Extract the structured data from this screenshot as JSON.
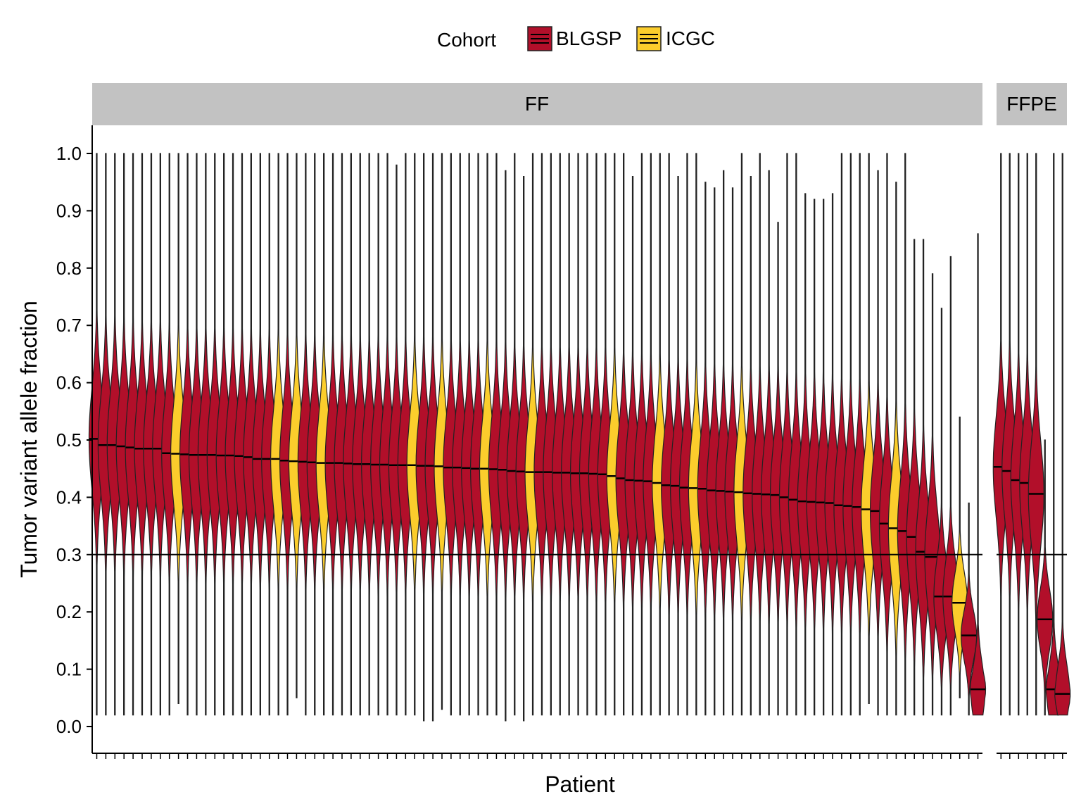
{
  "chart_data": {
    "type": "violin",
    "legend": {
      "title": "Cohort",
      "placement": "top",
      "entries": [
        {
          "name": "BLGSP",
          "color": "#B20F2A"
        },
        {
          "name": "ICGC",
          "color": "#FBCD2C"
        }
      ]
    },
    "xlabel": "Patient",
    "ylabel": "Tumor variant allele fraction",
    "ylim": [
      -0.05,
      1.05
    ],
    "yticks": [
      "0.0",
      "0.1",
      "0.2",
      "0.3",
      "0.4",
      "0.5",
      "0.6",
      "0.7",
      "0.8",
      "0.9",
      "1.0"
    ],
    "reference_line_y": 0.3,
    "facets": [
      {
        "label": "FF",
        "patients": [
          {
            "cohort": "BLGSP",
            "median": 0.502,
            "min": 0.02,
            "max": 1.0
          },
          {
            "cohort": "BLGSP",
            "median": 0.491,
            "min": 0.02,
            "max": 1.0
          },
          {
            "cohort": "BLGSP",
            "median": 0.491,
            "min": 0.02,
            "max": 1.0
          },
          {
            "cohort": "BLGSP",
            "median": 0.489,
            "min": 0.02,
            "max": 1.0
          },
          {
            "cohort": "BLGSP",
            "median": 0.487,
            "min": 0.02,
            "max": 1.0
          },
          {
            "cohort": "BLGSP",
            "median": 0.485,
            "min": 0.02,
            "max": 1.0
          },
          {
            "cohort": "BLGSP",
            "median": 0.485,
            "min": 0.02,
            "max": 1.0
          },
          {
            "cohort": "BLGSP",
            "median": 0.485,
            "min": 0.02,
            "max": 1.0
          },
          {
            "cohort": "BLGSP",
            "median": 0.477,
            "min": 0.02,
            "max": 1.0
          },
          {
            "cohort": "ICGC",
            "median": 0.476,
            "min": 0.04,
            "max": 1.0
          },
          {
            "cohort": "BLGSP",
            "median": 0.475,
            "min": 0.02,
            "max": 1.0
          },
          {
            "cohort": "BLGSP",
            "median": 0.474,
            "min": 0.02,
            "max": 1.0
          },
          {
            "cohort": "BLGSP",
            "median": 0.474,
            "min": 0.02,
            "max": 1.0
          },
          {
            "cohort": "BLGSP",
            "median": 0.474,
            "min": 0.02,
            "max": 1.0
          },
          {
            "cohort": "BLGSP",
            "median": 0.473,
            "min": 0.02,
            "max": 1.0
          },
          {
            "cohort": "BLGSP",
            "median": 0.473,
            "min": 0.02,
            "max": 1.0
          },
          {
            "cohort": "BLGSP",
            "median": 0.472,
            "min": 0.02,
            "max": 1.0
          },
          {
            "cohort": "BLGSP",
            "median": 0.47,
            "min": 0.02,
            "max": 1.0
          },
          {
            "cohort": "BLGSP",
            "median": 0.467,
            "min": 0.02,
            "max": 1.0
          },
          {
            "cohort": "BLGSP",
            "median": 0.467,
            "min": 0.02,
            "max": 1.0
          },
          {
            "cohort": "ICGC",
            "median": 0.467,
            "min": 0.02,
            "max": 1.0
          },
          {
            "cohort": "BLGSP",
            "median": 0.464,
            "min": 0.02,
            "max": 1.0
          },
          {
            "cohort": "ICGC",
            "median": 0.463,
            "min": 0.05,
            "max": 1.0
          },
          {
            "cohort": "BLGSP",
            "median": 0.462,
            "min": 0.02,
            "max": 1.0
          },
          {
            "cohort": "BLGSP",
            "median": 0.461,
            "min": 0.02,
            "max": 1.0
          },
          {
            "cohort": "ICGC",
            "median": 0.46,
            "min": 0.02,
            "max": 1.0
          },
          {
            "cohort": "BLGSP",
            "median": 0.46,
            "min": 0.02,
            "max": 1.0
          },
          {
            "cohort": "BLGSP",
            "median": 0.46,
            "min": 0.02,
            "max": 1.0
          },
          {
            "cohort": "BLGSP",
            "median": 0.459,
            "min": 0.02,
            "max": 1.0
          },
          {
            "cohort": "BLGSP",
            "median": 0.458,
            "min": 0.02,
            "max": 1.0
          },
          {
            "cohort": "BLGSP",
            "median": 0.458,
            "min": 0.02,
            "max": 1.0
          },
          {
            "cohort": "BLGSP",
            "median": 0.457,
            "min": 0.02,
            "max": 1.0
          },
          {
            "cohort": "BLGSP",
            "median": 0.457,
            "min": 0.02,
            "max": 1.0
          },
          {
            "cohort": "BLGSP",
            "median": 0.456,
            "min": 0.02,
            "max": 0.98
          },
          {
            "cohort": "BLGSP",
            "median": 0.456,
            "min": 0.02,
            "max": 1.0
          },
          {
            "cohort": "ICGC",
            "median": 0.456,
            "min": 0.02,
            "max": 1.0
          },
          {
            "cohort": "BLGSP",
            "median": 0.455,
            "min": 0.01,
            "max": 1.0
          },
          {
            "cohort": "BLGSP",
            "median": 0.455,
            "min": 0.01,
            "max": 1.0
          },
          {
            "cohort": "ICGC",
            "median": 0.454,
            "min": 0.03,
            "max": 1.0
          },
          {
            "cohort": "BLGSP",
            "median": 0.452,
            "min": 0.02,
            "max": 1.0
          },
          {
            "cohort": "BLGSP",
            "median": 0.452,
            "min": 0.02,
            "max": 1.0
          },
          {
            "cohort": "BLGSP",
            "median": 0.451,
            "min": 0.02,
            "max": 1.0
          },
          {
            "cohort": "BLGSP",
            "median": 0.45,
            "min": 0.02,
            "max": 1.0
          },
          {
            "cohort": "ICGC",
            "median": 0.45,
            "min": 0.02,
            "max": 1.0
          },
          {
            "cohort": "BLGSP",
            "median": 0.449,
            "min": 0.02,
            "max": 1.0
          },
          {
            "cohort": "BLGSP",
            "median": 0.448,
            "min": 0.01,
            "max": 0.97
          },
          {
            "cohort": "BLGSP",
            "median": 0.446,
            "min": 0.02,
            "max": 1.0
          },
          {
            "cohort": "BLGSP",
            "median": 0.445,
            "min": 0.01,
            "max": 0.96
          },
          {
            "cohort": "ICGC",
            "median": 0.444,
            "min": 0.02,
            "max": 1.0
          },
          {
            "cohort": "BLGSP",
            "median": 0.444,
            "min": 0.02,
            "max": 1.0
          },
          {
            "cohort": "BLGSP",
            "median": 0.444,
            "min": 0.02,
            "max": 1.0
          },
          {
            "cohort": "BLGSP",
            "median": 0.443,
            "min": 0.02,
            "max": 1.0
          },
          {
            "cohort": "BLGSP",
            "median": 0.443,
            "min": 0.02,
            "max": 1.0
          },
          {
            "cohort": "BLGSP",
            "median": 0.442,
            "min": 0.02,
            "max": 1.0
          },
          {
            "cohort": "BLGSP",
            "median": 0.442,
            "min": 0.02,
            "max": 1.0
          },
          {
            "cohort": "BLGSP",
            "median": 0.441,
            "min": 0.02,
            "max": 1.0
          },
          {
            "cohort": "BLGSP",
            "median": 0.44,
            "min": 0.02,
            "max": 1.0
          },
          {
            "cohort": "ICGC",
            "median": 0.437,
            "min": 0.02,
            "max": 1.0
          },
          {
            "cohort": "BLGSP",
            "median": 0.433,
            "min": 0.02,
            "max": 1.0
          },
          {
            "cohort": "BLGSP",
            "median": 0.43,
            "min": 0.02,
            "max": 0.96
          },
          {
            "cohort": "BLGSP",
            "median": 0.429,
            "min": 0.02,
            "max": 1.0
          },
          {
            "cohort": "BLGSP",
            "median": 0.428,
            "min": 0.02,
            "max": 1.0
          },
          {
            "cohort": "ICGC",
            "median": 0.425,
            "min": 0.02,
            "max": 1.0
          },
          {
            "cohort": "BLGSP",
            "median": 0.421,
            "min": 0.02,
            "max": 1.0
          },
          {
            "cohort": "BLGSP",
            "median": 0.42,
            "min": 0.02,
            "max": 0.96
          },
          {
            "cohort": "BLGSP",
            "median": 0.417,
            "min": 0.02,
            "max": 1.0
          },
          {
            "cohort": "ICGC",
            "median": 0.416,
            "min": 0.02,
            "max": 1.0
          },
          {
            "cohort": "BLGSP",
            "median": 0.415,
            "min": 0.02,
            "max": 0.95
          },
          {
            "cohort": "BLGSP",
            "median": 0.412,
            "min": 0.02,
            "max": 0.94
          },
          {
            "cohort": "BLGSP",
            "median": 0.411,
            "min": 0.02,
            "max": 0.97
          },
          {
            "cohort": "BLGSP",
            "median": 0.41,
            "min": 0.02,
            "max": 0.94
          },
          {
            "cohort": "ICGC",
            "median": 0.409,
            "min": 0.02,
            "max": 1.0
          },
          {
            "cohort": "BLGSP",
            "median": 0.407,
            "min": 0.02,
            "max": 0.96
          },
          {
            "cohort": "BLGSP",
            "median": 0.406,
            "min": 0.02,
            "max": 1.0
          },
          {
            "cohort": "BLGSP",
            "median": 0.405,
            "min": 0.02,
            "max": 0.97
          },
          {
            "cohort": "BLGSP",
            "median": 0.404,
            "min": 0.02,
            "max": 0.88
          },
          {
            "cohort": "BLGSP",
            "median": 0.4,
            "min": 0.02,
            "max": 1.0
          },
          {
            "cohort": "BLGSP",
            "median": 0.396,
            "min": 0.02,
            "max": 1.0
          },
          {
            "cohort": "BLGSP",
            "median": 0.393,
            "min": 0.02,
            "max": 0.93
          },
          {
            "cohort": "BLGSP",
            "median": 0.392,
            "min": 0.02,
            "max": 0.92
          },
          {
            "cohort": "BLGSP",
            "median": 0.391,
            "min": 0.02,
            "max": 0.92
          },
          {
            "cohort": "BLGSP",
            "median": 0.39,
            "min": 0.02,
            "max": 0.93
          },
          {
            "cohort": "BLGSP",
            "median": 0.386,
            "min": 0.02,
            "max": 1.0
          },
          {
            "cohort": "BLGSP",
            "median": 0.385,
            "min": 0.02,
            "max": 1.0
          },
          {
            "cohort": "BLGSP",
            "median": 0.383,
            "min": 0.02,
            "max": 1.0
          },
          {
            "cohort": "ICGC",
            "median": 0.379,
            "min": 0.04,
            "max": 1.0
          },
          {
            "cohort": "BLGSP",
            "median": 0.376,
            "min": 0.02,
            "max": 0.97
          },
          {
            "cohort": "BLGSP",
            "median": 0.354,
            "min": 0.02,
            "max": 1.0
          },
          {
            "cohort": "ICGC",
            "median": 0.346,
            "min": 0.02,
            "max": 0.95
          },
          {
            "cohort": "BLGSP",
            "median": 0.341,
            "min": 0.02,
            "max": 1.0
          },
          {
            "cohort": "BLGSP",
            "median": 0.331,
            "min": 0.02,
            "max": 0.85
          },
          {
            "cohort": "BLGSP",
            "median": 0.305,
            "min": 0.02,
            "max": 0.85
          },
          {
            "cohort": "BLGSP",
            "median": 0.296,
            "min": 0.02,
            "max": 0.79
          },
          {
            "cohort": "BLGSP",
            "median": 0.227,
            "min": 0.02,
            "max": 0.73
          },
          {
            "cohort": "BLGSP",
            "median": 0.227,
            "min": 0.02,
            "max": 0.82
          },
          {
            "cohort": "ICGC",
            "median": 0.216,
            "min": 0.05,
            "max": 0.54
          },
          {
            "cohort": "BLGSP",
            "median": 0.159,
            "min": 0.02,
            "max": 0.39
          },
          {
            "cohort": "BLGSP",
            "median": 0.065,
            "min": 0.02,
            "max": 0.86
          }
        ]
      },
      {
        "label": "FFPE",
        "patients": [
          {
            "cohort": "BLGSP",
            "median": 0.453,
            "min": 0.02,
            "max": 1.0
          },
          {
            "cohort": "BLGSP",
            "median": 0.446,
            "min": 0.02,
            "max": 1.0
          },
          {
            "cohort": "BLGSP",
            "median": 0.43,
            "min": 0.02,
            "max": 1.0
          },
          {
            "cohort": "BLGSP",
            "median": 0.425,
            "min": 0.02,
            "max": 1.0
          },
          {
            "cohort": "BLGSP",
            "median": 0.406,
            "min": 0.02,
            "max": 1.0
          },
          {
            "cohort": "BLGSP",
            "median": 0.187,
            "min": 0.02,
            "max": 0.5
          },
          {
            "cohort": "BLGSP",
            "median": 0.065,
            "min": 0.02,
            "max": 1.0
          },
          {
            "cohort": "BLGSP",
            "median": 0.057,
            "min": 0.02,
            "max": 1.0
          }
        ]
      }
    ]
  }
}
